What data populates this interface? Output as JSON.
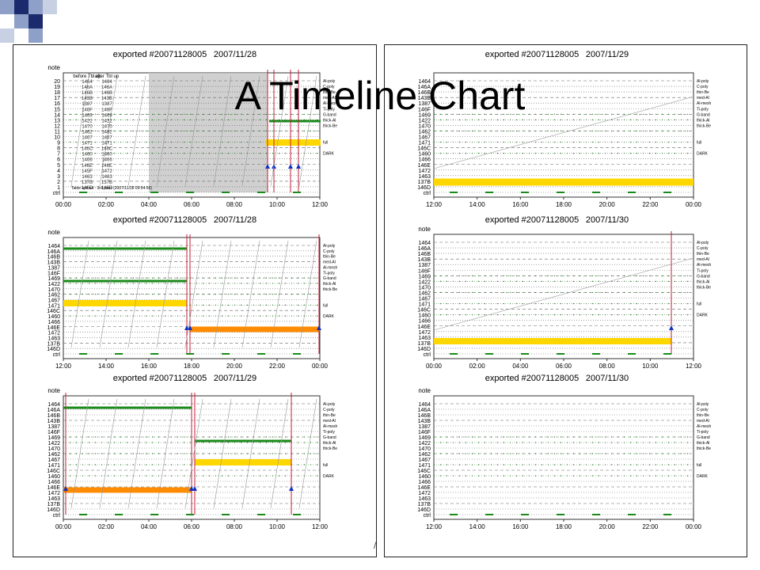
{
  "slide": {
    "title": "A Timeline Chart",
    "footer_mark": "/",
    "deco_colors": [
      "#8ea0c8",
      "#1a2a6c"
    ]
  },
  "chart_data": [
    {
      "type": "timeline",
      "title": "exported #20071128005",
      "date": "2007/11/28",
      "x_ticks": [
        "00:00",
        "02:00",
        "04:00",
        "06:00",
        "08:00",
        "10:00",
        "12:00"
      ],
      "y_header": "note",
      "y_labels": [
        "20",
        "19",
        "18",
        "17",
        "16",
        "15",
        "14",
        "13",
        "12",
        "11",
        "10",
        "9",
        "8",
        "7",
        "6",
        "5",
        "4",
        "3",
        "2",
        "1",
        "ctrl"
      ],
      "table_headers": [
        "before Tbl up",
        "after Tbl up"
      ],
      "table_before": [
        "1464",
        "146A",
        "146B",
        "143B",
        "1387",
        "146F",
        "1469",
        "1422",
        "1470",
        "1462",
        "1467",
        "1471",
        "146C",
        "1460",
        "1466",
        "146E",
        "145F",
        "1463",
        "137B",
        "146D"
      ],
      "table_after": [
        "1464",
        "146A",
        "146B",
        "143B",
        "1387",
        "146F",
        "1469",
        "1422",
        "1470",
        "1462",
        "1467",
        "1471",
        "146C",
        "1460",
        "1466",
        "146E",
        "1472",
        "1463",
        "137B",
        "146D"
      ],
      "annotations": [
        "Table upload : 3rd pass (2007/11/28 09:54:56)"
      ],
      "right_labels": [
        "Al-poly",
        "C-poly",
        "thin-Be",
        "med-Al",
        "Al-mesh",
        "Ti-poly",
        "G-band",
        "thick-Al",
        "thick-Be",
        "full",
        "DARK"
      ]
    },
    {
      "type": "timeline",
      "title": "exported #20071128005",
      "date": "2007/11/28",
      "x_ticks": [
        "12:00",
        "14:00",
        "16:00",
        "18:00",
        "20:00",
        "22:00",
        "00:00"
      ],
      "y_header": "note",
      "y_labels": [
        "1464",
        "146A",
        "146B",
        "143B",
        "1387",
        "146F",
        "1469",
        "1422",
        "1470",
        "1462",
        "1467",
        "1471",
        "146C",
        "1460",
        "1466",
        "146E",
        "1472",
        "1463",
        "137B",
        "146D",
        "ctrl"
      ],
      "right_labels": [
        "Al-poly",
        "C-poly",
        "thin-Be",
        "med-Al",
        "Al-mesh",
        "Ti-poly",
        "G-band",
        "thick-Al",
        "thick-Be",
        "full",
        "DARK"
      ]
    },
    {
      "type": "timeline",
      "title": "exported #20071128005",
      "date": "2007/11/29",
      "x_ticks": [
        "00:00",
        "02:00",
        "04:00",
        "06:00",
        "08:00",
        "10:00",
        "12:00"
      ],
      "y_header": "note",
      "y_labels": [
        "1464",
        "146A",
        "146B",
        "143B",
        "1387",
        "146F",
        "1469",
        "1422",
        "1470",
        "1462",
        "1467",
        "1471",
        "146C",
        "1460",
        "1466",
        "146E",
        "1472",
        "1463",
        "137B",
        "146D",
        "ctrl"
      ],
      "right_labels": [
        "Al-poly",
        "C-poly",
        "thin-Be",
        "med-Al",
        "Al-mesh",
        "Ti-poly",
        "G-band",
        "thick-Al",
        "thick-Be",
        "full",
        "DARK"
      ]
    },
    {
      "type": "timeline",
      "title": "exported #20071128005",
      "date": "2007/11/29",
      "x_ticks": [
        "12:00",
        "14:00",
        "16:00",
        "18:00",
        "20:00",
        "22:00",
        "00:00"
      ],
      "y_header": "",
      "y_labels": [
        "1464",
        "146A",
        "146B",
        "143B",
        "1387",
        "146F",
        "1469",
        "1422",
        "1470",
        "1462",
        "1467",
        "1471",
        "146C",
        "1460",
        "1466",
        "146E",
        "1472",
        "1463",
        "137B",
        "146D",
        "ctrl"
      ],
      "right_labels": [
        "Al-poly",
        "C-poly",
        "thin-Be",
        "med-Al",
        "Al-mesh",
        "Ti-poly",
        "G-band",
        "thick-Al",
        "thick-Be",
        "full",
        "DARK"
      ]
    },
    {
      "type": "timeline",
      "title": "exported #20071128005",
      "date": "2007/11/30",
      "x_ticks": [
        "00:00",
        "02:00",
        "04:00",
        "06:00",
        "08:00",
        "10:00",
        "12:00"
      ],
      "y_header": "note",
      "y_labels": [
        "1464",
        "146A",
        "146B",
        "143B",
        "1387",
        "146F",
        "1469",
        "1422",
        "1470",
        "1462",
        "1467",
        "1471",
        "146C",
        "1460",
        "1466",
        "146E",
        "1472",
        "1463",
        "137B",
        "146D",
        "ctrl"
      ],
      "right_labels": [
        "Al-poly",
        "C-poly",
        "thin-Be",
        "med-Al",
        "Al-mesh",
        "Ti-poly",
        "G-band",
        "thick-Al",
        "thick-Be",
        "full",
        "DARK"
      ]
    },
    {
      "type": "timeline",
      "title": "exported #20071128005",
      "date": "2007/11/30",
      "x_ticks": [
        "12:00",
        "14:00",
        "16:00",
        "18:00",
        "20:00",
        "22:00",
        "00:00"
      ],
      "y_header": "note",
      "y_labels": [
        "1464",
        "146A",
        "146B",
        "143B",
        "1387",
        "146F",
        "1469",
        "1422",
        "1470",
        "1462",
        "1467",
        "1471",
        "146C",
        "1460",
        "1466",
        "146E",
        "1472",
        "1463",
        "137B",
        "146D",
        "ctrl"
      ],
      "right_labels": [
        "Al-poly",
        "C-poly",
        "thin-Be",
        "med-Al",
        "Al-mesh",
        "Ti-poly",
        "G-band",
        "thick-Al",
        "thick-Be",
        "full",
        "DARK"
      ]
    }
  ]
}
